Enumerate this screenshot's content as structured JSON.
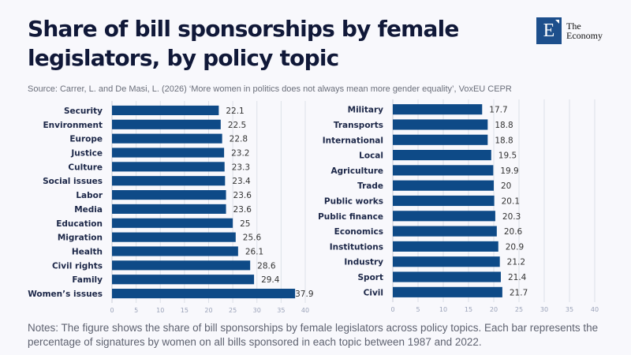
{
  "header": {
    "title": "Share of bill sponsorships by female legislators, by policy topic",
    "source": "Source: Carrer, L. and De Masi, L. (2026) ‘More women in politics does not always mean more gender equality’, VoxEU CEPR",
    "logo_letter": "E",
    "logo_line1": "The",
    "logo_line2": "Economy"
  },
  "notes": "Notes: The figure shows the share of bill sponsorships by female legislators across policy topics. Each bar represents the percentage of signatures by women on all bills sponsored in each topic between 1987 and 2022.",
  "colors": {
    "bar": "#0e4a87",
    "grid": "#dde1e8"
  },
  "chart_data": [
    {
      "type": "bar",
      "orientation": "horizontal",
      "title": "",
      "xlabel": "",
      "ylabel": "",
      "xlim": [
        0,
        40
      ],
      "ticks": [
        0,
        5,
        10,
        15,
        20,
        25,
        30,
        35,
        40
      ],
      "grid": true,
      "categories": [
        "Security",
        "Environment",
        "Europe",
        "Justice",
        "Culture",
        "Social issues",
        "Labor",
        "Media",
        "Education",
        "Migration",
        "Health",
        "Civil rights",
        "Family",
        "Women’s issues"
      ],
      "values": [
        22.1,
        22.5,
        22.8,
        23.2,
        23.3,
        23.4,
        23.6,
        23.6,
        25,
        25.6,
        26.1,
        28.6,
        29.4,
        37.9
      ]
    },
    {
      "type": "bar",
      "orientation": "horizontal",
      "title": "",
      "xlabel": "",
      "ylabel": "",
      "xlim": [
        0,
        40
      ],
      "ticks": [
        0,
        5,
        10,
        15,
        20,
        25,
        30,
        35,
        40
      ],
      "grid": true,
      "categories": [
        "Military",
        "Transports",
        "International",
        "Local",
        "Agriculture",
        "Trade",
        "Public works",
        "Public finance",
        "Economics",
        "Institutions",
        "Industry",
        "Sport",
        "Civil"
      ],
      "values": [
        17.7,
        18.8,
        18.8,
        19.5,
        19.9,
        20,
        20.1,
        20.3,
        20.6,
        20.9,
        21.2,
        21.4,
        21.7
      ]
    }
  ]
}
